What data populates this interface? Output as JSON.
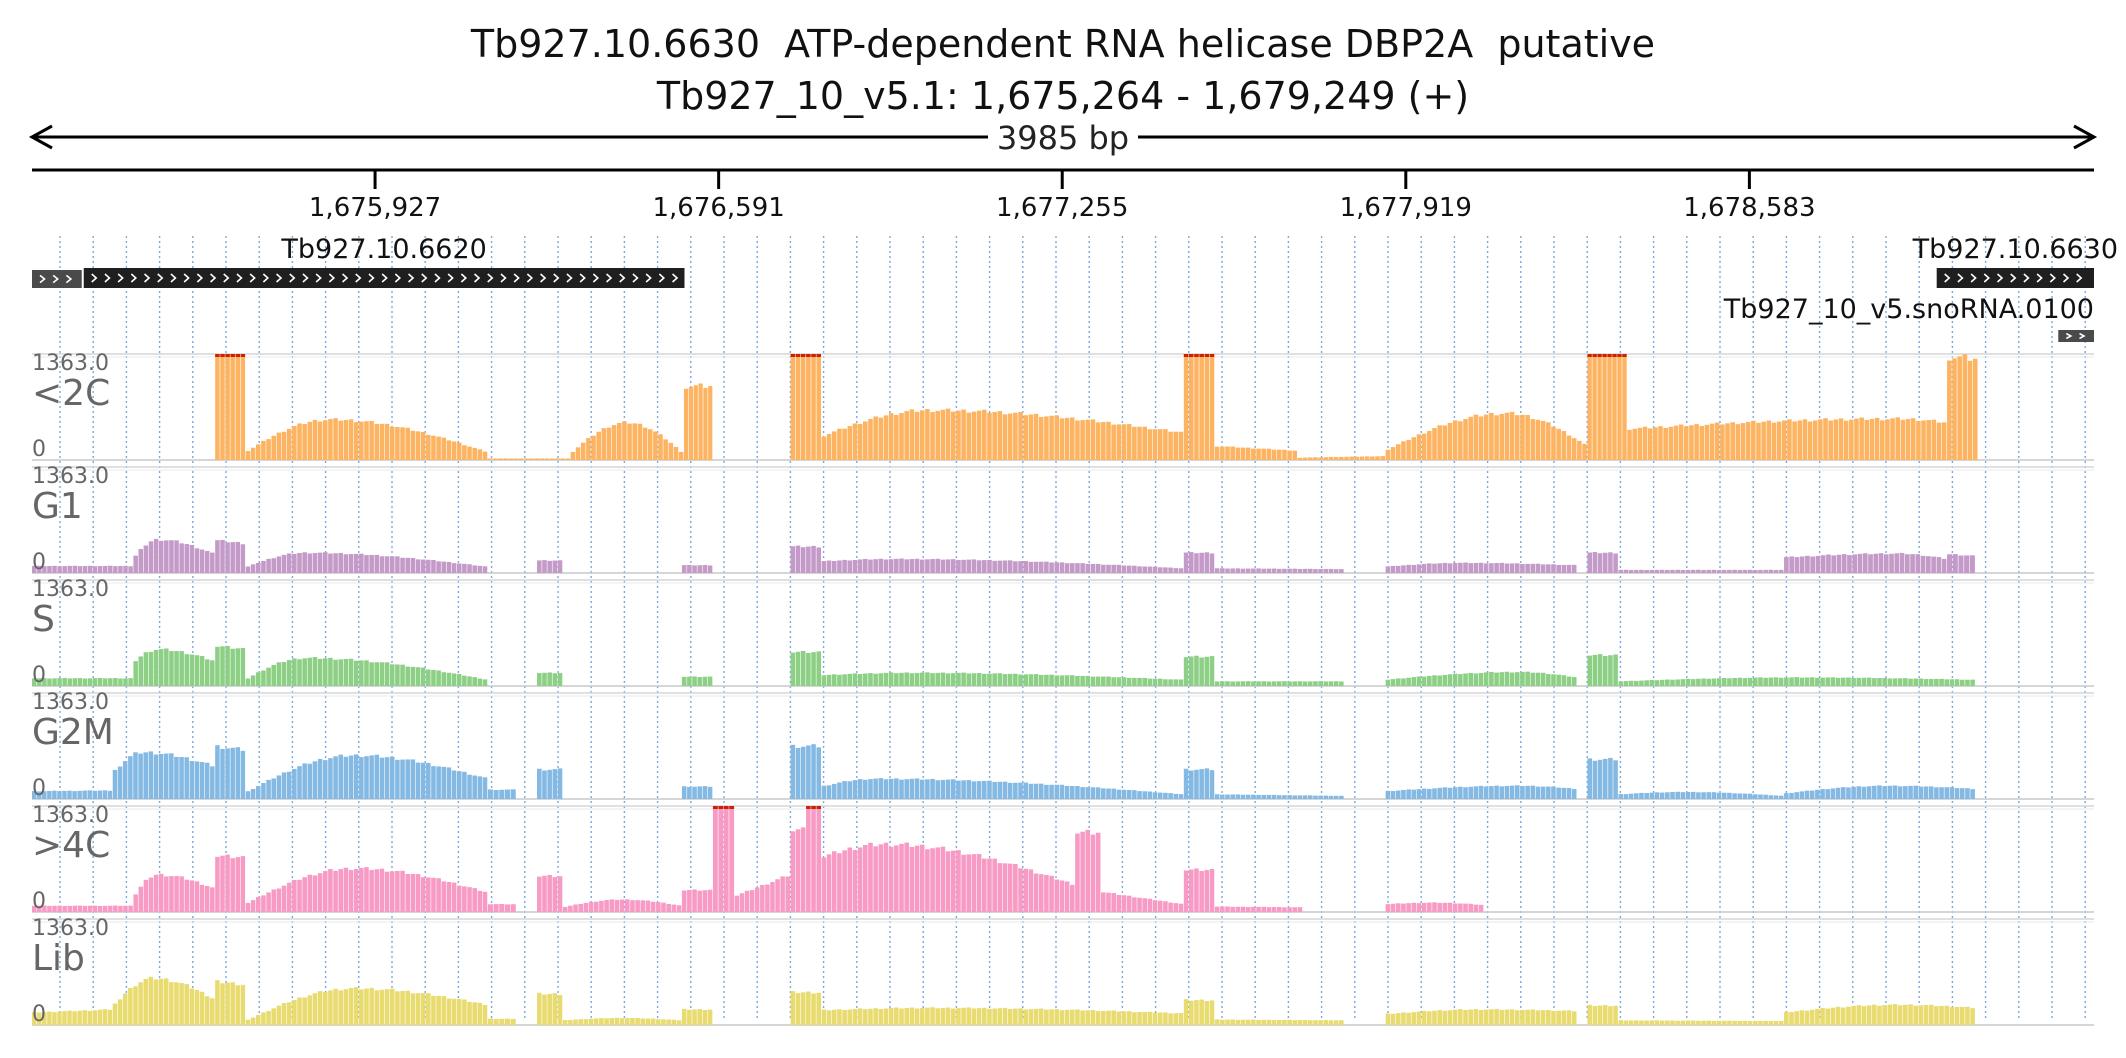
{
  "header": {
    "gene_title": "Tb927.10.6630  ATP-dependent RNA helicase DBP2A  putative",
    "locus": "Tb927_10_v5.1: 1,675,264 - 1,679,249 (+)",
    "span_label": "3985 bp"
  },
  "features": [
    {
      "name": "Tb927.10.6620",
      "label": "Tb927.10.6620",
      "start": 1675364,
      "end": 1676525,
      "strand": "+"
    },
    {
      "name": "Tb927.10.6630",
      "label": "Tb927.10.6630",
      "start": 1678945,
      "end": 1679249,
      "strand": "+"
    },
    {
      "name": "Tb927_10_v5.snoRNA.0100",
      "label": "Tb927_10_v5.snoRNA.0100",
      "start": 1679180,
      "end": 1679249,
      "strand": "+"
    }
  ],
  "colors": {
    "<2C": "#fdb462",
    "G1": "#c49ac8",
    "S": "#8ccf85",
    "G2M": "#84b9e4",
    ">4C": "#f79ac4",
    "Lib": "#e8db70",
    "clip": "#cc2200",
    "feature": "#1f1f1f"
  },
  "chart_data": {
    "type": "bar",
    "x_axis": {
      "start": 1675264,
      "end": 1679249,
      "ticks": [
        1675927,
        1676591,
        1677255,
        1677919,
        1678583
      ],
      "tick_labels": [
        "1,675,927",
        "1,676,591",
        "1,677,255",
        "1,677,919",
        "1,678,583"
      ]
    },
    "y_max_label": "1363.0",
    "y_min_label": "0",
    "ylim": [
      0,
      1363
    ],
    "grid": true,
    "series": [
      {
        "name": "<2C",
        "segments": [
          {
            "start": 1675618,
            "end": 1675677,
            "y0": 1500,
            "y1": 1500
          },
          {
            "start": 1675677,
            "end": 1676145,
            "y0": 100,
            "y1": 100,
            "peak": 520,
            "peak_pos": 0.35
          },
          {
            "start": 1676145,
            "end": 1676305,
            "y0": 20,
            "y1": 20
          },
          {
            "start": 1676305,
            "end": 1676524,
            "y0": 80,
            "y1": 80,
            "peak": 480,
            "peak_pos": 0.5
          },
          {
            "start": 1676524,
            "end": 1676580,
            "y0": 950,
            "y1": 950
          },
          {
            "start": 1676730,
            "end": 1676790,
            "y0": 1500,
            "y1": 1500
          },
          {
            "start": 1676790,
            "end": 1677490,
            "y0": 300,
            "y1": 350,
            "peak": 640,
            "peak_pos": 0.3
          },
          {
            "start": 1677490,
            "end": 1677550,
            "y0": 1500,
            "y1": 1500
          },
          {
            "start": 1677550,
            "end": 1677710,
            "y0": 180,
            "y1": 120
          },
          {
            "start": 1677710,
            "end": 1677880,
            "y0": 30,
            "y1": 50
          },
          {
            "start": 1677880,
            "end": 1678270,
            "y0": 120,
            "y1": 180,
            "peak": 600,
            "peak_pos": 0.6
          },
          {
            "start": 1678270,
            "end": 1678347,
            "y0": 1500,
            "y1": 1500
          },
          {
            "start": 1678347,
            "end": 1678965,
            "y0": 400,
            "y1": 480,
            "peak": 530,
            "peak_pos": 0.85
          },
          {
            "start": 1678965,
            "end": 1679025,
            "y0": 1330,
            "y1": 1300
          }
        ]
      },
      {
        "name": "G1",
        "segments": [
          {
            "start": 1675264,
            "end": 1675460,
            "y0": 90,
            "y1": 90
          },
          {
            "start": 1675460,
            "end": 1675618,
            "y0": 180,
            "y1": 240,
            "peak": 430,
            "peak_pos": 0.3
          },
          {
            "start": 1675618,
            "end": 1675677,
            "y0": 420,
            "y1": 380
          },
          {
            "start": 1675677,
            "end": 1676145,
            "y0": 70,
            "y1": 80,
            "peak": 260,
            "peak_pos": 0.25
          },
          {
            "start": 1676240,
            "end": 1676290,
            "y0": 160,
            "y1": 160
          },
          {
            "start": 1676520,
            "end": 1676580,
            "y0": 100,
            "y1": 100
          },
          {
            "start": 1676730,
            "end": 1676790,
            "y0": 340,
            "y1": 340
          },
          {
            "start": 1676790,
            "end": 1677490,
            "y0": 150,
            "y1": 60,
            "peak": 180,
            "peak_pos": 0.2
          },
          {
            "start": 1677490,
            "end": 1677550,
            "y0": 260,
            "y1": 260
          },
          {
            "start": 1677550,
            "end": 1677800,
            "y0": 60,
            "y1": 50
          },
          {
            "start": 1677880,
            "end": 1678250,
            "y0": 80,
            "y1": 100,
            "peak": 130,
            "peak_pos": 0.4
          },
          {
            "start": 1678270,
            "end": 1678330,
            "y0": 260,
            "y1": 260
          },
          {
            "start": 1678330,
            "end": 1678650,
            "y0": 40,
            "y1": 40
          },
          {
            "start": 1678650,
            "end": 1678965,
            "y0": 200,
            "y1": 180,
            "peak": 250,
            "peak_pos": 0.7
          },
          {
            "start": 1678965,
            "end": 1679020,
            "y0": 240,
            "y1": 220
          }
        ]
      },
      {
        "name": "S",
        "segments": [
          {
            "start": 1675264,
            "end": 1675460,
            "y0": 100,
            "y1": 100
          },
          {
            "start": 1675460,
            "end": 1675618,
            "y0": 300,
            "y1": 320,
            "peak": 470,
            "peak_pos": 0.3
          },
          {
            "start": 1675618,
            "end": 1675677,
            "y0": 520,
            "y1": 480
          },
          {
            "start": 1675677,
            "end": 1676145,
            "y0": 80,
            "y1": 80,
            "peak": 360,
            "peak_pos": 0.25
          },
          {
            "start": 1676240,
            "end": 1676290,
            "y0": 170,
            "y1": 170
          },
          {
            "start": 1676520,
            "end": 1676580,
            "y0": 120,
            "y1": 120
          },
          {
            "start": 1676730,
            "end": 1676790,
            "y0": 440,
            "y1": 440
          },
          {
            "start": 1676790,
            "end": 1677490,
            "y0": 140,
            "y1": 80,
            "peak": 170,
            "peak_pos": 0.25
          },
          {
            "start": 1677490,
            "end": 1677550,
            "y0": 380,
            "y1": 380
          },
          {
            "start": 1677550,
            "end": 1677800,
            "y0": 60,
            "y1": 60
          },
          {
            "start": 1677880,
            "end": 1678250,
            "y0": 80,
            "y1": 110,
            "peak": 180,
            "peak_pos": 0.7
          },
          {
            "start": 1678270,
            "end": 1678330,
            "y0": 400,
            "y1": 400
          },
          {
            "start": 1678330,
            "end": 1679020,
            "y0": 60,
            "y1": 80,
            "peak": 110,
            "peak_pos": 0.5
          }
        ]
      },
      {
        "name": "G2M",
        "segments": [
          {
            "start": 1675264,
            "end": 1675420,
            "y0": 100,
            "y1": 110
          },
          {
            "start": 1675420,
            "end": 1675618,
            "y0": 330,
            "y1": 420,
            "peak": 600,
            "peak_pos": 0.3
          },
          {
            "start": 1675618,
            "end": 1675677,
            "y0": 680,
            "y1": 630
          },
          {
            "start": 1675677,
            "end": 1676145,
            "y0": 80,
            "y1": 260,
            "peak": 560,
            "peak_pos": 0.45
          },
          {
            "start": 1676145,
            "end": 1676200,
            "y0": 120,
            "y1": 120
          },
          {
            "start": 1676240,
            "end": 1676290,
            "y0": 380,
            "y1": 380
          },
          {
            "start": 1676520,
            "end": 1676580,
            "y0": 160,
            "y1": 160
          },
          {
            "start": 1676730,
            "end": 1676790,
            "y0": 680,
            "y1": 680
          },
          {
            "start": 1676790,
            "end": 1677490,
            "y0": 160,
            "y1": 60,
            "peak": 260,
            "peak_pos": 0.15
          },
          {
            "start": 1677490,
            "end": 1677550,
            "y0": 380,
            "y1": 380
          },
          {
            "start": 1677550,
            "end": 1677800,
            "y0": 60,
            "y1": 40
          },
          {
            "start": 1677880,
            "end": 1678250,
            "y0": 100,
            "y1": 130,
            "peak": 170,
            "peak_pos": 0.7
          },
          {
            "start": 1678270,
            "end": 1678330,
            "y0": 510,
            "y1": 510
          },
          {
            "start": 1678330,
            "end": 1678650,
            "y0": 60,
            "y1": 40,
            "peak": 90,
            "peak_pos": 0.4
          },
          {
            "start": 1678650,
            "end": 1679020,
            "y0": 70,
            "y1": 130,
            "peak": 170,
            "peak_pos": 0.55
          }
        ]
      },
      {
        "name": ">4C",
        "segments": [
          {
            "start": 1675264,
            "end": 1675460,
            "y0": 80,
            "y1": 80
          },
          {
            "start": 1675460,
            "end": 1675618,
            "y0": 180,
            "y1": 300,
            "peak": 480,
            "peak_pos": 0.3
          },
          {
            "start": 1675618,
            "end": 1675677,
            "y0": 720,
            "y1": 700
          },
          {
            "start": 1675677,
            "end": 1676145,
            "y0": 100,
            "y1": 250,
            "peak": 560,
            "peak_pos": 0.45
          },
          {
            "start": 1676145,
            "end": 1676200,
            "y0": 100,
            "y1": 100
          },
          {
            "start": 1676240,
            "end": 1676290,
            "y0": 460,
            "y1": 460
          },
          {
            "start": 1676290,
            "end": 1676520,
            "y0": 60,
            "y1": 80,
            "peak": 160,
            "peak_pos": 0.5
          },
          {
            "start": 1676520,
            "end": 1676580,
            "y0": 280,
            "y1": 280
          },
          {
            "start": 1676580,
            "end": 1676622,
            "y0": 1400,
            "y1": 1400
          },
          {
            "start": 1676622,
            "end": 1676730,
            "y0": 200,
            "y1": 480
          },
          {
            "start": 1676730,
            "end": 1676760,
            "y0": 1050,
            "y1": 1050
          },
          {
            "start": 1676760,
            "end": 1676790,
            "y0": 1400,
            "y1": 1400
          },
          {
            "start": 1676790,
            "end": 1677280,
            "y0": 700,
            "y1": 350,
            "peak": 870,
            "peak_pos": 0.25
          },
          {
            "start": 1677280,
            "end": 1677330,
            "y0": 1020,
            "y1": 1020
          },
          {
            "start": 1677330,
            "end": 1677490,
            "y0": 260,
            "y1": 100
          },
          {
            "start": 1677490,
            "end": 1677550,
            "y0": 540,
            "y1": 540
          },
          {
            "start": 1677550,
            "end": 1677720,
            "y0": 70,
            "y1": 60
          },
          {
            "start": 1677880,
            "end": 1678070,
            "y0": 100,
            "y1": 90,
            "peak": 120,
            "peak_pos": 0.5
          }
        ]
      },
      {
        "name": "Lib",
        "segments": [
          {
            "start": 1675264,
            "end": 1675420,
            "y0": 160,
            "y1": 200
          },
          {
            "start": 1675420,
            "end": 1675618,
            "y0": 230,
            "y1": 330,
            "peak": 600,
            "peak_pos": 0.4
          },
          {
            "start": 1675618,
            "end": 1675677,
            "y0": 560,
            "y1": 520
          },
          {
            "start": 1675677,
            "end": 1676145,
            "y0": 50,
            "y1": 260,
            "peak": 470,
            "peak_pos": 0.45
          },
          {
            "start": 1676145,
            "end": 1676200,
            "y0": 80,
            "y1": 80
          },
          {
            "start": 1676240,
            "end": 1676290,
            "y0": 400,
            "y1": 400
          },
          {
            "start": 1676290,
            "end": 1676520,
            "y0": 60,
            "y1": 60,
            "peak": 90,
            "peak_pos": 0.5
          },
          {
            "start": 1676520,
            "end": 1676580,
            "y0": 200,
            "y1": 200
          },
          {
            "start": 1676730,
            "end": 1676790,
            "y0": 420,
            "y1": 420
          },
          {
            "start": 1676790,
            "end": 1677490,
            "y0": 190,
            "y1": 150,
            "peak": 220,
            "peak_pos": 0.3
          },
          {
            "start": 1677490,
            "end": 1677550,
            "y0": 320,
            "y1": 320
          },
          {
            "start": 1677550,
            "end": 1677800,
            "y0": 70,
            "y1": 60
          },
          {
            "start": 1677880,
            "end": 1678250,
            "y0": 140,
            "y1": 180,
            "peak": 200,
            "peak_pos": 0.5
          },
          {
            "start": 1678270,
            "end": 1678330,
            "y0": 250,
            "y1": 250
          },
          {
            "start": 1678330,
            "end": 1678650,
            "y0": 60,
            "y1": 50
          },
          {
            "start": 1678650,
            "end": 1679020,
            "y0": 160,
            "y1": 220,
            "peak": 260,
            "peak_pos": 0.6
          }
        ]
      }
    ]
  }
}
